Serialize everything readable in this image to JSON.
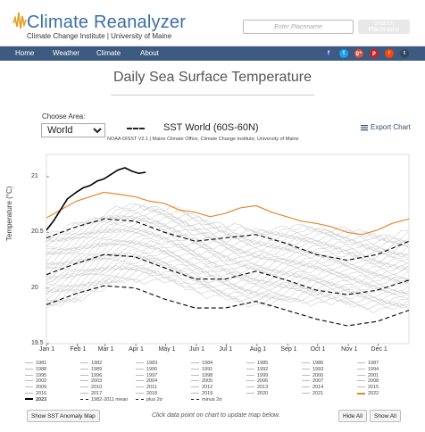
{
  "header": {
    "brand": "Climate Reanalyzer",
    "subtitle": "Climate Change Institute | University of Maine",
    "place_placeholder": "Enter Placename",
    "place_button": "Search Placename"
  },
  "nav": {
    "items": [
      "Home",
      "Weather",
      "Climate",
      "About"
    ],
    "social": [
      {
        "icon": "facebook-icon",
        "glyph": "f",
        "color": "#3b5998"
      },
      {
        "icon": "twitter-icon",
        "glyph": "t",
        "color": "#1da1f2"
      },
      {
        "icon": "google-plus-icon",
        "glyph": "g+",
        "color": "#dd4b39"
      },
      {
        "icon": "pinterest-icon",
        "glyph": "p",
        "color": "#cb2027"
      },
      {
        "icon": "reddit-icon",
        "glyph": "r",
        "color": "#ff4500"
      },
      {
        "icon": "tumblr-icon",
        "glyph": "t",
        "color": "#35465c"
      }
    ]
  },
  "page": {
    "title": "Daily Sea Surface Temperature",
    "area_label": "Choose Area:",
    "area_value": "World"
  },
  "chart_toolbar": {
    "export_label": "Export Chart"
  },
  "chart_data": {
    "type": "line",
    "title": "SST World (60S-60N)",
    "subtitle": "NOAA OISST V2.1 | Maine Climate Office, Climate Change Institute, University of Maine",
    "ylabel": "Temperature (°C)",
    "ylim": [
      19.5,
      21.2
    ],
    "yticks": [
      "19.5",
      "20",
      "20.5",
      "21"
    ],
    "xticks": [
      "Jan 1",
      "Feb 1",
      "Mar 1",
      "Apr 1",
      "May 1",
      "Jun 1",
      "Jul 1",
      "Aug 1",
      "Sep 1",
      "Oct 1",
      "Nov 1",
      "Dec 1"
    ],
    "xlim": [
      1,
      366
    ],
    "series": [
      {
        "name": "2023",
        "color": "#000000",
        "x": [
          1,
          8,
          15,
          22,
          31,
          38,
          45,
          52,
          59,
          66,
          73,
          80,
          87,
          94,
          101
        ],
        "y": [
          20.52,
          20.6,
          20.7,
          20.8,
          20.86,
          20.9,
          20.92,
          20.96,
          20.98,
          21.02,
          21.06,
          21.08,
          21.05,
          21.03,
          21.04
        ]
      },
      {
        "name": "2022",
        "color": "#e08a2c",
        "x": [
          1,
          15,
          31,
          45,
          59,
          75,
          90,
          105,
          120,
          135,
          151,
          166,
          181,
          196,
          212,
          228,
          243,
          258,
          273,
          288,
          304,
          319,
          334,
          349,
          366
        ],
        "y": [
          20.63,
          20.7,
          20.78,
          20.82,
          20.86,
          20.84,
          20.82,
          20.78,
          20.76,
          20.7,
          20.68,
          20.64,
          20.67,
          20.72,
          20.74,
          20.68,
          20.64,
          20.6,
          20.58,
          20.55,
          20.5,
          20.48,
          20.52,
          20.58,
          20.62
        ]
      },
      {
        "name": "1982-2011 mean",
        "color": "#000000",
        "dash": "5,3",
        "x": [
          1,
          31,
          59,
          90,
          120,
          151,
          181,
          212,
          243,
          273,
          304,
          334,
          366
        ],
        "y": [
          20.12,
          20.22,
          20.3,
          20.28,
          20.18,
          20.08,
          20.08,
          20.15,
          20.07,
          19.98,
          19.94,
          19.98,
          20.07
        ]
      },
      {
        "name": "plus 2σ",
        "color": "#000000",
        "dash": "5,3",
        "x": [
          1,
          31,
          59,
          90,
          120,
          151,
          181,
          212,
          243,
          273,
          304,
          334,
          366
        ],
        "y": [
          20.45,
          20.55,
          20.62,
          20.6,
          20.5,
          20.42,
          20.45,
          20.48,
          20.4,
          20.3,
          20.25,
          20.3,
          20.42
        ]
      },
      {
        "name": "minus 2σ",
        "color": "#000000",
        "dash": "5,3",
        "x": [
          1,
          31,
          59,
          90,
          120,
          151,
          181,
          212,
          243,
          273,
          304,
          334,
          366
        ],
        "y": [
          19.85,
          19.95,
          20.02,
          20.0,
          19.9,
          19.82,
          19.82,
          19.88,
          19.8,
          19.72,
          19.66,
          19.7,
          19.8
        ]
      }
    ]
  },
  "legend": {
    "entries": [
      "1981",
      "1982",
      "1983",
      "1984",
      "1985",
      "1986",
      "1987",
      "1988",
      "1989",
      "1990",
      "1991",
      "1992",
      "1993",
      "1994",
      "1995",
      "1996",
      "1997",
      "1998",
      "1999",
      "2000",
      "2001",
      "2002",
      "2003",
      "2004",
      "2005",
      "2006",
      "2007",
      "2008",
      "2009",
      "2010",
      "2011",
      "2012",
      "2013",
      "2014",
      "2015",
      "2016",
      "2017",
      "2018",
      "2019",
      "2020",
      "2021",
      "2022",
      "2023",
      "1982-2011 mean",
      "plus 2σ",
      "minus 2σ"
    ],
    "highlight": {
      "2022": "#e08a2c",
      "2023": "#000000"
    }
  },
  "footer": {
    "anomaly_button": "Show SST Anomaly Map",
    "hint": "Click data point on chart to update map below.",
    "hide_all": "Hide All",
    "show_all": "Show All"
  }
}
